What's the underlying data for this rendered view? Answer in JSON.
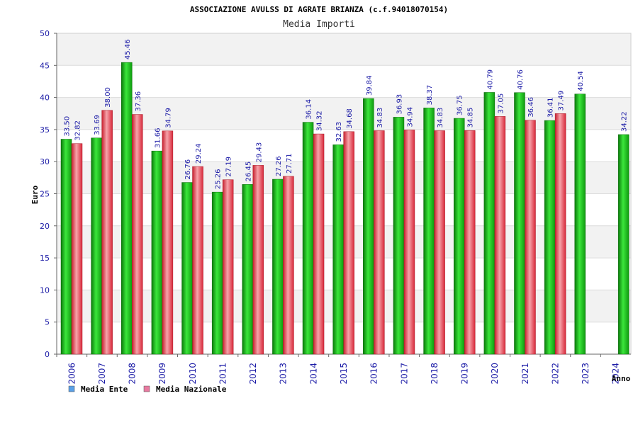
{
  "chart_data": {
    "type": "bar",
    "title": "ASSOCIAZIONE AVULSS DI AGRATE BRIANZA (c.f.94018070154)",
    "subtitle": "Media Importi",
    "ylabel": "Euro",
    "xlabel": "Anno",
    "ylim": [
      0,
      50
    ],
    "yticks": [
      "0",
      "5",
      "10",
      "15",
      "20",
      "25",
      "30",
      "35",
      "40",
      "45",
      "50"
    ],
    "categories": [
      "2006",
      "2007",
      "2008",
      "2009",
      "2010",
      "2011",
      "2012",
      "2013",
      "2014",
      "2015",
      "2016",
      "2017",
      "2018",
      "2019",
      "2020",
      "2021",
      "2022",
      "2023",
      "2024"
    ],
    "series": [
      {
        "name": "Media Ente",
        "color": "#1ec01e",
        "values": [
          33.5,
          33.69,
          45.46,
          31.66,
          26.76,
          25.26,
          26.45,
          27.26,
          36.14,
          32.63,
          39.84,
          36.93,
          38.37,
          36.75,
          40.79,
          40.76,
          36.41,
          40.54,
          34.22
        ],
        "labels": [
          "33.50",
          "33.69",
          "45.46",
          "31.66",
          "26.76",
          "25.26",
          "26.45",
          "27.26",
          "36.14",
          "32.63",
          "39.84",
          "36.93",
          "38.37",
          "36.75",
          "40.79",
          "40.76",
          "36.41",
          "40.54",
          "34.22"
        ]
      },
      {
        "name": "Media Nazionale",
        "color": "#e8384a",
        "values": [
          32.82,
          38.0,
          37.36,
          34.79,
          29.24,
          27.19,
          29.43,
          27.71,
          34.32,
          34.68,
          34.83,
          34.94,
          34.83,
          34.85,
          37.05,
          36.46,
          37.49,
          null,
          null
        ],
        "labels": [
          "32.82",
          "38.00",
          "37.36",
          "34.79",
          "29.24",
          "27.19",
          "29.43",
          "27.71",
          "34.32",
          "34.68",
          "34.83",
          "34.94",
          "34.83",
          "34.85",
          "37.05",
          "36.46",
          "37.49",
          null,
          null
        ]
      }
    ],
    "legend": {
      "position": "bottom-left",
      "items": [
        {
          "label": "Media Ente",
          "color": "#5aa0e6"
        },
        {
          "label": "Media Nazionale",
          "color": "#e87aa0"
        }
      ]
    },
    "grid": true,
    "band_colors": [
      "#ffffff",
      "#f2f2f2"
    ]
  }
}
